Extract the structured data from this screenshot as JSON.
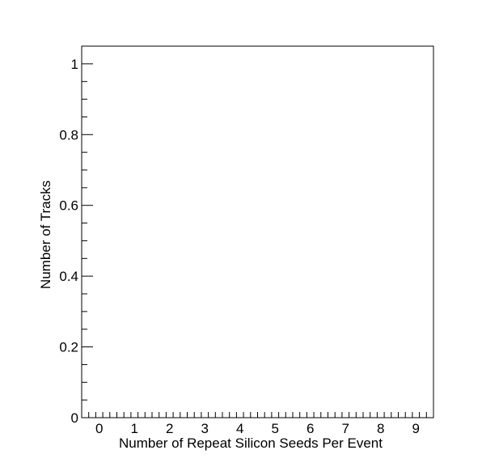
{
  "chart_data": {
    "type": "bar",
    "title": "",
    "xlabel": "Number of Repeat Silicon Seeds Per Event",
    "ylabel": "Number of Tracks",
    "xlim": [
      -0.5,
      9.5
    ],
    "ylim": [
      0,
      1.05
    ],
    "x_ticks": [
      0,
      1,
      2,
      3,
      4,
      5,
      6,
      7,
      8,
      9
    ],
    "x_tick_labels": [
      "0",
      "1",
      "2",
      "3",
      "4",
      "5",
      "6",
      "7",
      "8",
      "9"
    ],
    "y_ticks": [
      0,
      0.2,
      0.4,
      0.6,
      0.8,
      1
    ],
    "y_tick_labels": [
      "0",
      "0.2",
      "0.4",
      "0.6",
      "0.8",
      "1"
    ],
    "categories": [],
    "values": [],
    "grid": false,
    "legend": "none"
  }
}
